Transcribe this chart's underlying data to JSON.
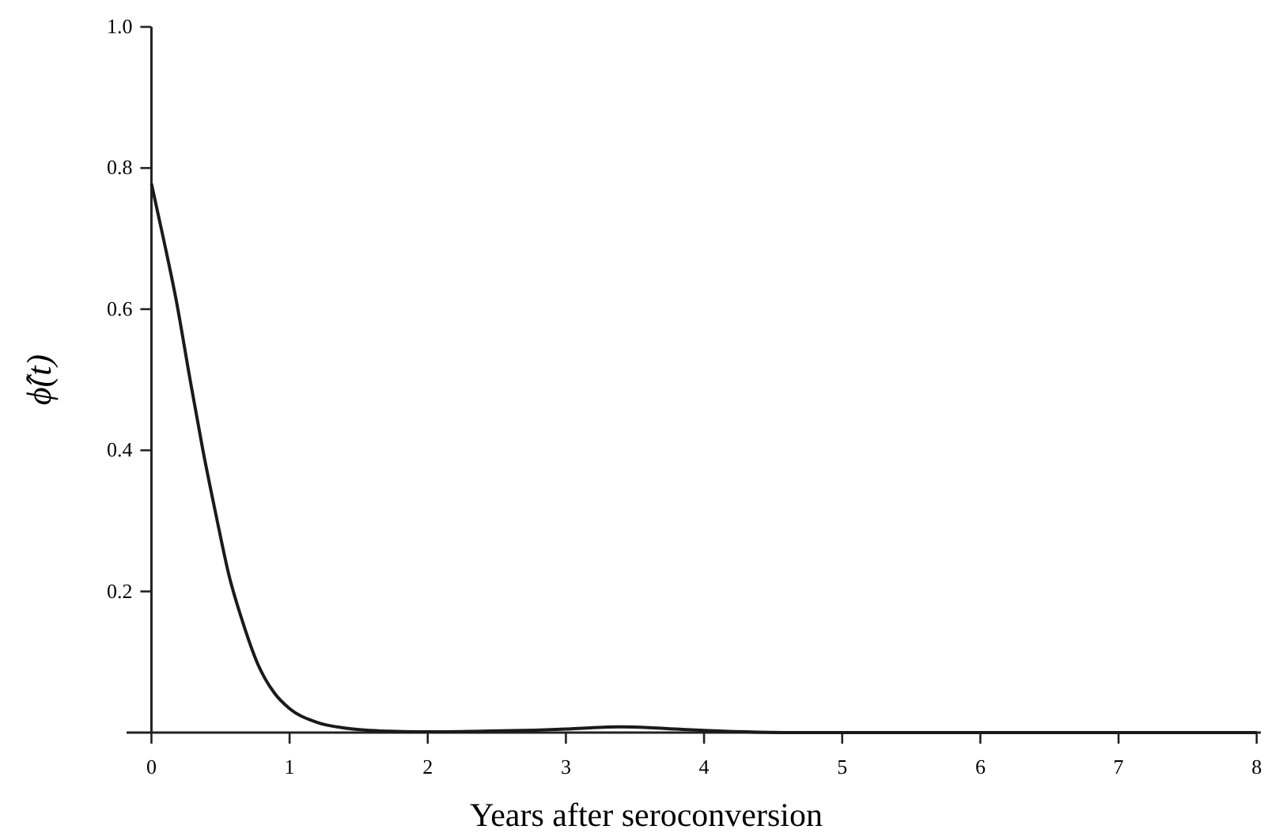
{
  "chart_data": {
    "type": "line",
    "xlabel": "Years after seroconversion",
    "ylabel": "ϕ̂(t)",
    "x": [
      0,
      0.087,
      0.18,
      0.28,
      0.37,
      0.47,
      0.56,
      0.66,
      0.77,
      0.89,
      1.0,
      1.19,
      1.42,
      1.72,
      2.0,
      2.4,
      2.7,
      3.0,
      3.2,
      3.4,
      3.6,
      3.8,
      4.0,
      4.3,
      4.6,
      5.0,
      6.0,
      7.0,
      8.0
    ],
    "series": [
      {
        "color": "#1a1a1a",
        "values": [
          0.778,
          0.7,
          0.612,
          0.5,
          0.403,
          0.306,
          0.224,
          0.157,
          0.097,
          0.056,
          0.034,
          0.015,
          0.006,
          0.002,
          0.001,
          0.002,
          0.003,
          0.005,
          0.007,
          0.008,
          0.007,
          0.005,
          0.003,
          0.001,
          0,
          0,
          0,
          0,
          0
        ]
      }
    ],
    "xlim": [
      -0.18,
      8.03
    ],
    "ylim": [
      0,
      1
    ],
    "xticks": [
      0,
      1,
      2,
      3,
      4,
      5,
      6,
      7,
      8
    ],
    "yticks": [
      0.2,
      0.4,
      0.6,
      0.8,
      {
        "value": 1,
        "label": "1.0"
      }
    ],
    "marker": "none",
    "line_style": "solid"
  }
}
